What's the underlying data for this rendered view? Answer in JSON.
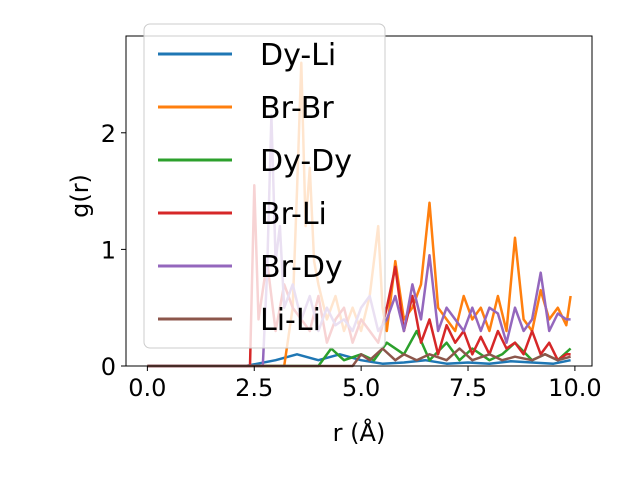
{
  "chart_data": {
    "type": "line",
    "xlabel": "r (Å)",
    "ylabel": "g(r)",
    "xlim": [
      -0.5,
      10.4
    ],
    "ylim": [
      0,
      2.83
    ],
    "xticks": [
      0.0,
      2.5,
      5.0,
      7.5,
      10.0
    ],
    "xtick_labels": [
      "0.0",
      "2.5",
      "5.0",
      "7.5",
      "10.0"
    ],
    "yticks": [
      0,
      1,
      2
    ],
    "ytick_labels": [
      "0",
      "1",
      "2"
    ],
    "grid": false,
    "legend_position": "upper-left",
    "series": [
      {
        "name": "Dy-Li",
        "color": "#1f77b4",
        "x": [
          0,
          2.3,
          3.0,
          3.5,
          4.0,
          4.5,
          5.0,
          5.5,
          6.0,
          6.5,
          7.0,
          7.5,
          8.0,
          8.5,
          9.0,
          9.5,
          9.9
        ],
        "y": [
          0,
          0,
          0.05,
          0.1,
          0.05,
          0.1,
          0.05,
          0.02,
          0.03,
          0.05,
          0.02,
          0.03,
          0.02,
          0.04,
          0.03,
          0.02,
          0.05
        ]
      },
      {
        "name": "Br-Br",
        "color": "#ff7f0e",
        "x": [
          0,
          3.2,
          3.4,
          3.5,
          3.6,
          3.7,
          3.8,
          3.9,
          4.0,
          4.2,
          4.4,
          4.6,
          4.8,
          5.0,
          5.2,
          5.4,
          5.5,
          5.6,
          5.8,
          6.0,
          6.2,
          6.4,
          6.6,
          6.8,
          7.0,
          7.2,
          7.4,
          7.6,
          7.8,
          8.0,
          8.2,
          8.4,
          8.6,
          8.8,
          9.0,
          9.2,
          9.4,
          9.6,
          9.8,
          9.9
        ],
        "y": [
          0,
          0,
          0.5,
          1.5,
          2.6,
          1.2,
          1.7,
          0.9,
          0.7,
          0.4,
          0.6,
          0.3,
          0.5,
          0.3,
          0.6,
          1.2,
          0.5,
          0.3,
          0.9,
          0.4,
          0.5,
          0.7,
          1.4,
          0.5,
          0.4,
          0.3,
          0.6,
          0.4,
          0.5,
          0.3,
          0.6,
          0.3,
          1.1,
          0.4,
          0.3,
          0.65,
          0.4,
          0.5,
          0.35,
          0.6
        ]
      },
      {
        "name": "Dy-Dy",
        "color": "#2ca02c",
        "x": [
          0,
          4.0,
          4.3,
          4.6,
          5.0,
          5.3,
          5.6,
          6.0,
          6.3,
          6.6,
          7.0,
          7.3,
          7.6,
          8.0,
          8.3,
          8.6,
          9.0,
          9.3,
          9.6,
          9.9
        ],
        "y": [
          0,
          0,
          0.15,
          0.05,
          0.1,
          0.05,
          0.2,
          0.1,
          0.3,
          0.05,
          0.2,
          0.05,
          0.15,
          0.05,
          0.1,
          0.2,
          0.05,
          0.1,
          0.05,
          0.15
        ]
      },
      {
        "name": "Br-Li",
        "color": "#d62728",
        "x": [
          0,
          2.4,
          2.5,
          2.6,
          2.8,
          3.0,
          3.2,
          3.4,
          3.6,
          3.8,
          4.0,
          4.2,
          4.4,
          4.6,
          4.8,
          5.0,
          5.2,
          5.4,
          5.6,
          5.8,
          6.0,
          6.2,
          6.4,
          6.6,
          6.8,
          7.0,
          7.2,
          7.4,
          7.6,
          7.8,
          8.0,
          8.2,
          8.4,
          8.6,
          8.8,
          9.0,
          9.2,
          9.4,
          9.6,
          9.8,
          9.9
        ],
        "y": [
          0,
          0,
          1.55,
          0.4,
          0.9,
          0.3,
          0.7,
          0.5,
          0.4,
          0.3,
          0.6,
          0.2,
          0.4,
          0.5,
          0.2,
          0.4,
          0.3,
          0.2,
          0.5,
          0.85,
          0.3,
          0.6,
          0.2,
          0.4,
          0.1,
          0.35,
          0.2,
          0.3,
          0.1,
          0.25,
          0.1,
          0.3,
          0.15,
          0.2,
          0.1,
          0.3,
          0.1,
          0.2,
          0.05,
          0.1,
          0.1
        ]
      },
      {
        "name": "Br-Dy",
        "color": "#9467bd",
        "x": [
          0,
          2.7,
          2.8,
          2.9,
          3.0,
          3.1,
          3.2,
          3.4,
          3.6,
          3.8,
          4.0,
          4.2,
          4.4,
          4.6,
          4.8,
          5.0,
          5.2,
          5.4,
          5.6,
          5.8,
          6.0,
          6.2,
          6.4,
          6.6,
          6.8,
          7.0,
          7.2,
          7.4,
          7.6,
          7.8,
          8.0,
          8.2,
          8.4,
          8.6,
          8.8,
          9.0,
          9.2,
          9.4,
          9.6,
          9.8,
          9.9
        ],
        "y": [
          0,
          0,
          0.8,
          2.15,
          0.9,
          1.2,
          0.5,
          0.7,
          0.4,
          0.6,
          0.3,
          0.5,
          0.35,
          0.4,
          0.3,
          0.5,
          0.6,
          0.3,
          0.4,
          0.6,
          0.3,
          0.7,
          0.4,
          0.95,
          0.3,
          0.5,
          0.4,
          0.3,
          0.5,
          0.3,
          0.5,
          0.45,
          0.2,
          0.5,
          0.3,
          0.4,
          0.8,
          0.3,
          0.45,
          0.4,
          0.4
        ]
      },
      {
        "name": "Li-Li",
        "color": "#8c564b",
        "x": [
          0,
          4.8,
          5.0,
          5.2,
          5.5,
          5.8,
          6.0,
          6.3,
          6.6,
          7.0,
          7.3,
          7.6,
          8.0,
          8.3,
          8.6,
          9.0,
          9.3,
          9.6,
          9.9
        ],
        "y": [
          0,
          0,
          0.1,
          0.05,
          0.15,
          0.05,
          0.1,
          0.05,
          0.1,
          0.05,
          0.15,
          0.05,
          0.1,
          0.05,
          0.08,
          0.05,
          0.1,
          0.05,
          0.08
        ]
      }
    ]
  }
}
